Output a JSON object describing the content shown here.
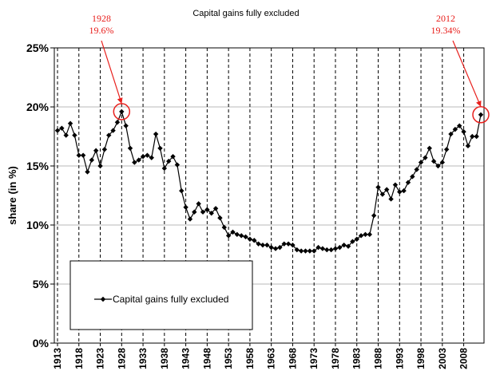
{
  "chart_data": {
    "type": "line",
    "title": "Capital gains fully excluded",
    "xlabel": "",
    "ylabel": "share (in %)",
    "ylim": [
      0,
      25
    ],
    "xlim": [
      1913,
      2012
    ],
    "grid": "vertical dashed every 5 years",
    "y_ticks": [
      "0%",
      "5%",
      "10%",
      "15%",
      "20%",
      "25%"
    ],
    "x_ticks": [
      "1913",
      "1918",
      "1923",
      "1928",
      "1933",
      "1938",
      "1943",
      "1948",
      "1953",
      "1958",
      "1963",
      "1968",
      "1973",
      "1978",
      "1983",
      "1988",
      "1993",
      "1998",
      "2003",
      "2008"
    ],
    "legend": {
      "position": "lower-left",
      "entries": [
        "Capital gains fully excluded"
      ]
    },
    "series": [
      {
        "name": "Capital gains fully excluded",
        "color": "#000000",
        "marker": "diamond",
        "x": [
          1913,
          1914,
          1915,
          1916,
          1917,
          1918,
          1919,
          1920,
          1921,
          1922,
          1923,
          1924,
          1925,
          1926,
          1927,
          1928,
          1929,
          1930,
          1931,
          1932,
          1933,
          1934,
          1935,
          1936,
          1937,
          1938,
          1939,
          1940,
          1941,
          1942,
          1943,
          1944,
          1945,
          1946,
          1947,
          1948,
          1949,
          1950,
          1951,
          1952,
          1953,
          1954,
          1955,
          1956,
          1957,
          1958,
          1959,
          1960,
          1961,
          1962,
          1963,
          1964,
          1965,
          1966,
          1967,
          1968,
          1969,
          1970,
          1971,
          1972,
          1973,
          1974,
          1975,
          1976,
          1977,
          1978,
          1979,
          1980,
          1981,
          1982,
          1983,
          1984,
          1985,
          1986,
          1987,
          1988,
          1989,
          1990,
          1991,
          1992,
          1993,
          1994,
          1995,
          1996,
          1997,
          1998,
          1999,
          2000,
          2001,
          2002,
          2003,
          2004,
          2005,
          2006,
          2007,
          2008,
          2009,
          2010,
          2011,
          2012
        ],
        "values": [
          18.0,
          18.2,
          17.6,
          18.6,
          17.6,
          15.9,
          15.9,
          14.5,
          15.5,
          16.3,
          15.0,
          16.4,
          17.6,
          18.0,
          18.7,
          19.6,
          18.4,
          16.5,
          15.3,
          15.5,
          15.8,
          15.9,
          15.7,
          17.7,
          16.5,
          14.8,
          15.4,
          15.8,
          15.1,
          12.9,
          11.5,
          10.5,
          11.1,
          11.8,
          11.1,
          11.3,
          11.0,
          11.4,
          10.6,
          9.8,
          9.1,
          9.4,
          9.2,
          9.1,
          9.0,
          8.8,
          8.7,
          8.4,
          8.3,
          8.3,
          8.1,
          8.0,
          8.1,
          8.4,
          8.4,
          8.3,
          7.9,
          7.8,
          7.8,
          7.8,
          7.8,
          8.1,
          8.0,
          7.9,
          7.9,
          8.0,
          8.1,
          8.3,
          8.2,
          8.6,
          8.8,
          9.1,
          9.2,
          9.2,
          10.8,
          13.2,
          12.6,
          13.0,
          12.2,
          13.4,
          12.8,
          12.9,
          13.6,
          14.1,
          14.7,
          15.3,
          15.7,
          16.5,
          15.4,
          15.0,
          15.3,
          16.4,
          17.7,
          18.1,
          18.4,
          17.9,
          16.7,
          17.5,
          17.5,
          19.34
        ]
      }
    ],
    "annotations": [
      {
        "year": "1928",
        "value": "19.6%"
      },
      {
        "year": "2012",
        "value": "19.34%"
      }
    ]
  }
}
